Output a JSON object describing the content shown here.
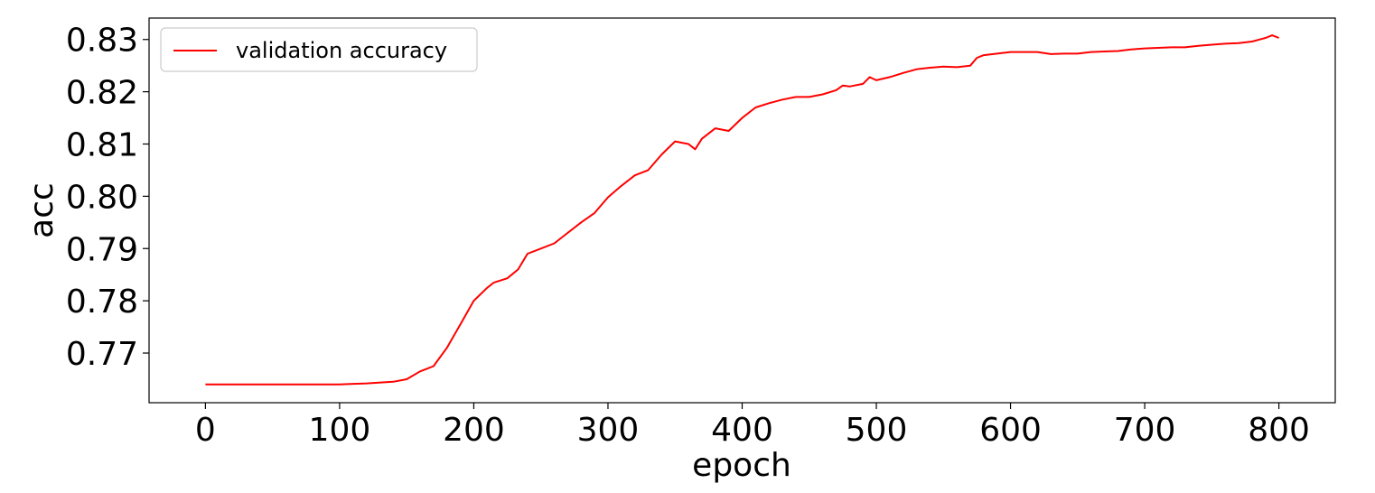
{
  "chart_data": {
    "type": "line",
    "title": "",
    "xlabel": "epoch",
    "ylabel": "acc",
    "xlim": [
      -42,
      842
    ],
    "ylim": [
      0.7605,
      0.8341
    ],
    "xticks": [
      0,
      100,
      200,
      300,
      400,
      500,
      600,
      700,
      800
    ],
    "xtick_labels": [
      "0",
      "100",
      "200",
      "300",
      "400",
      "500",
      "600",
      "700",
      "800"
    ],
    "yticks": [
      0.77,
      0.78,
      0.79,
      0.8,
      0.81,
      0.82,
      0.83
    ],
    "ytick_labels": [
      "0.77",
      "0.78",
      "0.79",
      "0.80",
      "0.81",
      "0.82",
      "0.83"
    ],
    "grid": false,
    "legend": {
      "position": "top-left",
      "entries": [
        "validation accuracy"
      ]
    },
    "series": [
      {
        "name": "validation accuracy",
        "color": "#ff0000",
        "x": [
          0,
          50,
          100,
          120,
          140,
          150,
          160,
          165,
          170,
          180,
          190,
          200,
          210,
          215,
          225,
          233,
          240,
          250,
          260,
          270,
          280,
          290,
          300,
          310,
          320,
          330,
          340,
          350,
          360,
          365,
          370,
          380,
          390,
          400,
          410,
          420,
          430,
          440,
          450,
          460,
          470,
          475,
          480,
          490,
          495,
          500,
          510,
          520,
          530,
          540,
          550,
          560,
          570,
          575,
          580,
          590,
          600,
          610,
          620,
          630,
          640,
          650,
          660,
          670,
          680,
          690,
          700,
          710,
          720,
          730,
          740,
          750,
          760,
          770,
          780,
          790,
          795,
          800
        ],
        "y": [
          0.764,
          0.764,
          0.764,
          0.7642,
          0.7645,
          0.765,
          0.7665,
          0.767,
          0.7675,
          0.771,
          0.7755,
          0.78,
          0.7825,
          0.7835,
          0.7843,
          0.786,
          0.789,
          0.79,
          0.791,
          0.793,
          0.795,
          0.7968,
          0.7998,
          0.802,
          0.804,
          0.805,
          0.808,
          0.8105,
          0.81,
          0.809,
          0.811,
          0.813,
          0.8125,
          0.815,
          0.817,
          0.8178,
          0.8185,
          0.819,
          0.819,
          0.8195,
          0.8203,
          0.8212,
          0.821,
          0.8215,
          0.8228,
          0.8222,
          0.8228,
          0.8236,
          0.8243,
          0.8246,
          0.8248,
          0.8247,
          0.825,
          0.8265,
          0.827,
          0.8273,
          0.8276,
          0.8276,
          0.8276,
          0.8272,
          0.8273,
          0.8273,
          0.8276,
          0.8277,
          0.8278,
          0.8281,
          0.8283,
          0.8284,
          0.8285,
          0.8285,
          0.8288,
          0.829,
          0.8292,
          0.8293,
          0.8296,
          0.8303,
          0.8308,
          0.8303
        ]
      }
    ]
  }
}
